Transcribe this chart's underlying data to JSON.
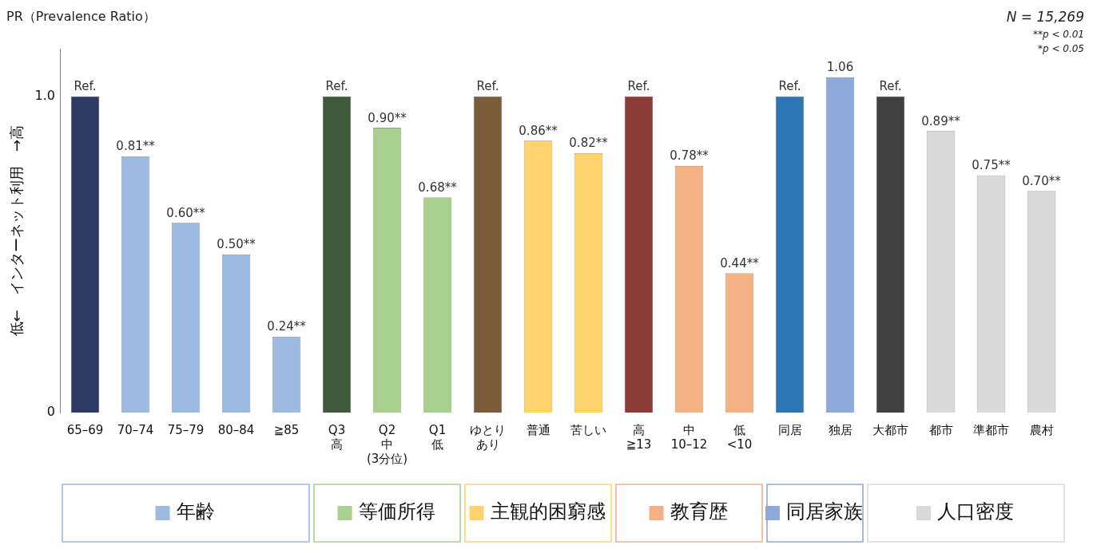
{
  "chart_data": {
    "type": "bar",
    "title": "PR（Prevalence Ratio）",
    "ylabel": "低←　インターネット利用　→高",
    "categories": [
      "65–69",
      "70–74",
      "75–79",
      "80–84",
      "≧85",
      "Q3\n高",
      "Q2\n中\n(3分位)",
      "Q1\n低",
      "ゆとりあり",
      "普通",
      "苦しい",
      "高\n≧13",
      "中\n10–12",
      "低\n<10",
      "同居",
      "独居",
      "大都市",
      "都市",
      "準都市",
      "農村"
    ],
    "series": [
      {
        "name": "年齢",
        "color": "#9dbbe0",
        "colors": [
          "#2e3a63",
          "#9dbbe0",
          "#9dbbe0",
          "#9dbbe0",
          "#9dbbe0",
          null,
          null,
          null,
          null,
          null,
          null,
          null,
          null,
          null,
          null,
          null,
          null,
          null,
          null,
          null
        ],
        "values": [
          1.0,
          0.81,
          0.6,
          0.5,
          0.24,
          null,
          null,
          null,
          null,
          null,
          null,
          null,
          null,
          null,
          null,
          null,
          null,
          null,
          null,
          null
        ],
        "value_labels": [
          "Ref.",
          "0.81**",
          "0.60**",
          "0.50**",
          "0.24**",
          null,
          null,
          null,
          null,
          null,
          null,
          null,
          null,
          null,
          null,
          null,
          null,
          null,
          null,
          null
        ]
      },
      {
        "name": "等価所得",
        "color": "#a9d08e",
        "colors": [
          null,
          null,
          null,
          null,
          null,
          "#3e5a3a",
          "#a9d08e",
          "#a9d08e",
          null,
          null,
          null,
          null,
          null,
          null,
          null,
          null,
          null,
          null,
          null,
          null
        ],
        "values": [
          null,
          null,
          null,
          null,
          null,
          1.0,
          0.9,
          0.68,
          null,
          null,
          null,
          null,
          null,
          null,
          null,
          null,
          null,
          null,
          null,
          null
        ],
        "value_labels": [
          null,
          null,
          null,
          null,
          null,
          "Ref.",
          "0.90**",
          "0.68**",
          null,
          null,
          null,
          null,
          null,
          null,
          null,
          null,
          null,
          null,
          null,
          null
        ]
      },
      {
        "name": "主観的困窮感",
        "color": "#ffd36b",
        "colors": [
          null,
          null,
          null,
          null,
          null,
          null,
          null,
          null,
          "#7a5c3a",
          "#ffd36b",
          "#ffd36b",
          null,
          null,
          null,
          null,
          null,
          null,
          null,
          null,
          null
        ],
        "values": [
          null,
          null,
          null,
          null,
          null,
          null,
          null,
          null,
          1.0,
          0.86,
          0.82,
          null,
          null,
          null,
          null,
          null,
          null,
          null,
          null,
          null
        ],
        "value_labels": [
          null,
          null,
          null,
          null,
          null,
          null,
          null,
          null,
          "Ref.",
          "0.86**",
          "0.82**",
          null,
          null,
          null,
          null,
          null,
          null,
          null,
          null,
          null
        ]
      },
      {
        "name": "教育歴",
        "color": "#f4b183",
        "colors": [
          null,
          null,
          null,
          null,
          null,
          null,
          null,
          null,
          null,
          null,
          null,
          "#8b3a34",
          "#f4b183",
          "#f4b183",
          null,
          null,
          null,
          null,
          null,
          null
        ],
        "values": [
          null,
          null,
          null,
          null,
          null,
          null,
          null,
          null,
          null,
          null,
          null,
          1.0,
          0.78,
          0.44,
          null,
          null,
          null,
          null,
          null,
          null
        ],
        "value_labels": [
          null,
          null,
          null,
          null,
          null,
          null,
          null,
          null,
          null,
          null,
          null,
          "Ref.",
          "0.78**",
          "0.44**",
          null,
          null,
          null,
          null,
          null,
          null
        ]
      },
      {
        "name": "同居家族",
        "color": "#8eaadb",
        "colors": [
          null,
          null,
          null,
          null,
          null,
          null,
          null,
          null,
          null,
          null,
          null,
          null,
          null,
          null,
          "#2e75b6",
          "#8eaadb",
          null,
          null,
          null,
          null
        ],
        "values": [
          null,
          null,
          null,
          null,
          null,
          null,
          null,
          null,
          null,
          null,
          null,
          null,
          null,
          null,
          1.0,
          1.06,
          null,
          null,
          null,
          null
        ],
        "value_labels": [
          null,
          null,
          null,
          null,
          null,
          null,
          null,
          null,
          null,
          null,
          null,
          null,
          null,
          null,
          "Ref.",
          "1.06",
          null,
          null,
          null,
          null
        ]
      },
      {
        "name": "人口密度",
        "color": "#d9d9d9",
        "colors": [
          null,
          null,
          null,
          null,
          null,
          null,
          null,
          null,
          null,
          null,
          null,
          null,
          null,
          null,
          null,
          null,
          "#404040",
          "#d9d9d9",
          "#d9d9d9",
          "#d9d9d9"
        ],
        "values": [
          null,
          null,
          null,
          null,
          null,
          null,
          null,
          null,
          null,
          null,
          null,
          null,
          null,
          null,
          null,
          null,
          1.0,
          0.89,
          0.75,
          0.7
        ],
        "value_labels": [
          null,
          null,
          null,
          null,
          null,
          null,
          null,
          null,
          null,
          null,
          null,
          null,
          null,
          null,
          null,
          null,
          "Ref.",
          "0.89**",
          "0.75**",
          "0.70**"
        ]
      }
    ],
    "ylim": [
      0,
      1.15
    ],
    "yticks": [
      0,
      {
        "value": 1,
        "label": "1.0"
      }
    ],
    "grid": false,
    "legend": "bottom",
    "annotations": [
      "N = 15,269",
      "**p < 0.01",
      "*p < 0.05"
    ]
  }
}
